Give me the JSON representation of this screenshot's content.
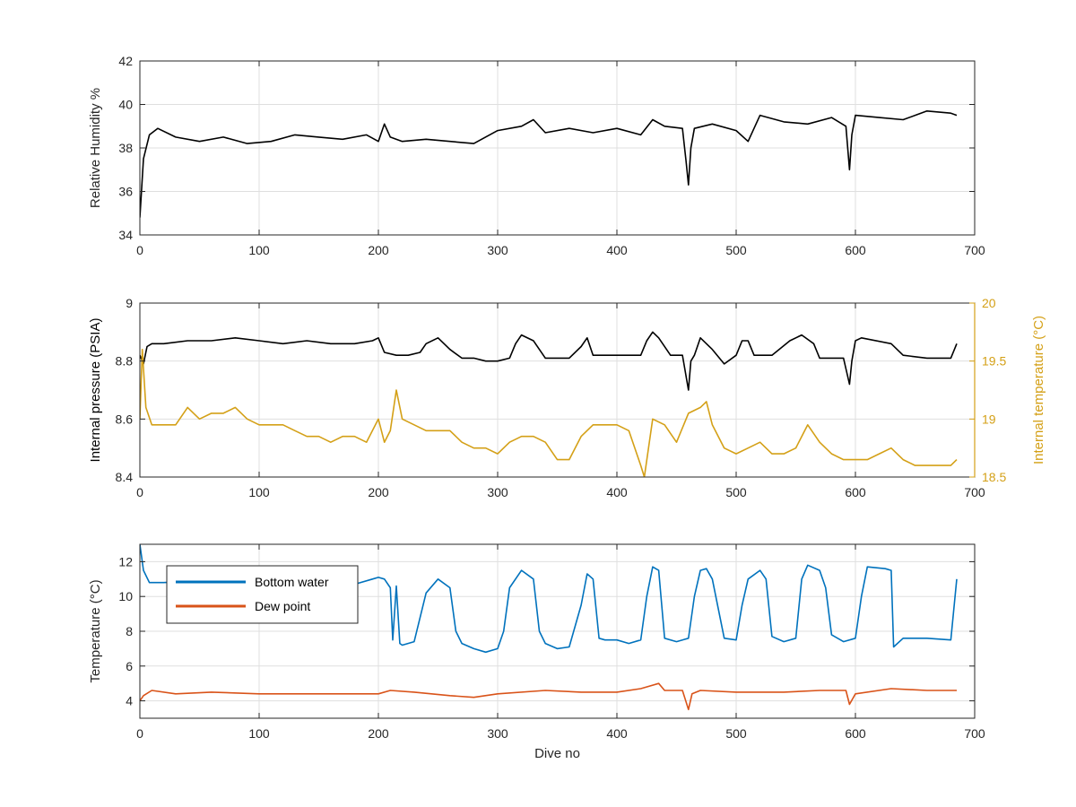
{
  "figure": {
    "background": "#ffffff"
  },
  "chart_data": [
    {
      "id": "humidity",
      "type": "line",
      "xlabel": "",
      "ylabel": "Relative Humidity %",
      "xlim": [
        0,
        700
      ],
      "ylim": [
        34,
        42
      ],
      "xticks": [
        0,
        100,
        200,
        300,
        400,
        500,
        600,
        700
      ],
      "yticks": [
        34,
        36,
        38,
        40,
        42
      ],
      "grid": true,
      "series": [
        {
          "color": "#000000",
          "x": [
            0,
            3,
            8,
            15,
            30,
            50,
            70,
            90,
            110,
            130,
            150,
            170,
            190,
            200,
            205,
            210,
            220,
            240,
            260,
            280,
            300,
            320,
            330,
            340,
            360,
            380,
            400,
            420,
            430,
            440,
            455,
            458,
            460,
            462,
            465,
            480,
            500,
            510,
            520,
            540,
            560,
            580,
            592,
            595,
            597,
            600,
            620,
            640,
            660,
            680,
            685
          ],
          "y": [
            34.8,
            37.5,
            38.6,
            38.9,
            38.5,
            38.3,
            38.5,
            38.2,
            38.3,
            38.6,
            38.5,
            38.4,
            38.6,
            38.3,
            39.1,
            38.5,
            38.3,
            38.4,
            38.3,
            38.2,
            38.8,
            39.0,
            39.3,
            38.7,
            38.9,
            38.7,
            38.9,
            38.6,
            39.3,
            39.0,
            38.9,
            37.4,
            36.3,
            38.0,
            38.9,
            39.1,
            38.8,
            38.3,
            39.5,
            39.2,
            39.1,
            39.4,
            39.0,
            37.0,
            38.6,
            39.5,
            39.4,
            39.3,
            39.7,
            39.6,
            39.5
          ]
        }
      ]
    },
    {
      "id": "pressure-temperature",
      "type": "line",
      "xlabel": "",
      "ylabel": "Internal pressure (PSIA)",
      "ylabel_right": "Internal temperature (°C)",
      "xlim": [
        0,
        700
      ],
      "ylim": [
        8.4,
        9
      ],
      "ylim_right": [
        18.5,
        20
      ],
      "xticks": [
        0,
        100,
        200,
        300,
        400,
        500,
        600,
        700
      ],
      "yticks": [
        8.4,
        8.6,
        8.8,
        9
      ],
      "yticks_right": [
        18.5,
        19,
        19.5,
        20
      ],
      "grid": true,
      "series": [
        {
          "axis": "left",
          "color": "#000000",
          "x": [
            0,
            3,
            6,
            10,
            20,
            40,
            60,
            80,
            100,
            120,
            140,
            160,
            180,
            195,
            200,
            205,
            215,
            225,
            235,
            240,
            250,
            260,
            270,
            280,
            290,
            300,
            310,
            315,
            320,
            330,
            340,
            360,
            370,
            375,
            380,
            390,
            400,
            420,
            425,
            430,
            435,
            445,
            455,
            460,
            462,
            465,
            470,
            480,
            490,
            500,
            505,
            510,
            515,
            520,
            530,
            545,
            555,
            565,
            570,
            580,
            590,
            595,
            597,
            600,
            605,
            630,
            640,
            660,
            680,
            685
          ],
          "y": [
            8.82,
            8.79,
            8.85,
            8.86,
            8.86,
            8.87,
            8.87,
            8.88,
            8.87,
            8.86,
            8.87,
            8.86,
            8.86,
            8.87,
            8.88,
            8.83,
            8.82,
            8.82,
            8.83,
            8.86,
            8.88,
            8.84,
            8.81,
            8.81,
            8.8,
            8.8,
            8.81,
            8.86,
            8.89,
            8.87,
            8.81,
            8.81,
            8.85,
            8.88,
            8.82,
            8.82,
            8.82,
            8.82,
            8.87,
            8.9,
            8.88,
            8.82,
            8.82,
            8.7,
            8.8,
            8.82,
            8.88,
            8.84,
            8.79,
            8.82,
            8.87,
            8.87,
            8.82,
            8.82,
            8.82,
            8.87,
            8.89,
            8.86,
            8.81,
            8.81,
            8.81,
            8.72,
            8.8,
            8.87,
            8.88,
            8.86,
            8.82,
            8.81,
            8.81,
            8.86
          ]
        },
        {
          "axis": "right",
          "color": "#D4A017",
          "x": [
            0,
            2,
            5,
            10,
            20,
            30,
            40,
            50,
            60,
            70,
            80,
            90,
            100,
            110,
            120,
            130,
            140,
            150,
            160,
            170,
            180,
            190,
            200,
            205,
            210,
            215,
            220,
            230,
            240,
            250,
            260,
            270,
            280,
            290,
            300,
            310,
            320,
            330,
            340,
            350,
            360,
            370,
            380,
            390,
            400,
            410,
            420,
            423,
            430,
            440,
            450,
            460,
            470,
            475,
            480,
            490,
            500,
            510,
            520,
            530,
            540,
            550,
            560,
            570,
            580,
            590,
            600,
            610,
            620,
            630,
            640,
            650,
            660,
            670,
            680,
            685
          ],
          "y": [
            19.0,
            19.6,
            19.1,
            18.95,
            18.95,
            18.95,
            19.1,
            19.0,
            19.05,
            19.05,
            19.1,
            19.0,
            18.95,
            18.95,
            18.95,
            18.9,
            18.85,
            18.85,
            18.8,
            18.85,
            18.85,
            18.8,
            19.0,
            18.8,
            18.9,
            19.25,
            19.0,
            18.95,
            18.9,
            18.9,
            18.9,
            18.8,
            18.75,
            18.75,
            18.7,
            18.8,
            18.85,
            18.85,
            18.8,
            18.65,
            18.65,
            18.85,
            18.95,
            18.95,
            18.95,
            18.9,
            18.6,
            18.5,
            19.0,
            18.95,
            18.8,
            19.05,
            19.1,
            19.15,
            18.95,
            18.75,
            18.7,
            18.75,
            18.8,
            18.7,
            18.7,
            18.75,
            18.95,
            18.8,
            18.7,
            18.65,
            18.65,
            18.65,
            18.7,
            18.75,
            18.65,
            18.6,
            18.6,
            18.6,
            18.6,
            18.65
          ]
        }
      ]
    },
    {
      "id": "temperature",
      "type": "line",
      "xlabel": "Dive no",
      "ylabel": "Temperature (°C)",
      "xlim": [
        0,
        700
      ],
      "ylim": [
        3,
        13
      ],
      "xticks": [
        0,
        100,
        200,
        300,
        400,
        500,
        600,
        700
      ],
      "yticks": [
        4,
        6,
        8,
        10,
        12
      ],
      "grid": true,
      "legend": "top-left",
      "series": [
        {
          "name": "Bottom water",
          "color": "#0072BD",
          "x": [
            0,
            3,
            8,
            20,
            50,
            100,
            150,
            180,
            195,
            200,
            205,
            210,
            212,
            215,
            218,
            220,
            230,
            240,
            250,
            260,
            265,
            270,
            280,
            290,
            300,
            305,
            310,
            320,
            330,
            335,
            340,
            350,
            360,
            370,
            375,
            380,
            385,
            390,
            400,
            410,
            420,
            425,
            430,
            435,
            440,
            450,
            460,
            465,
            470,
            475,
            480,
            490,
            500,
            505,
            510,
            520,
            525,
            530,
            540,
            550,
            555,
            560,
            570,
            575,
            580,
            590,
            600,
            605,
            610,
            625,
            630,
            632,
            640,
            660,
            680,
            685
          ],
          "y": [
            13,
            11.5,
            10.8,
            10.8,
            10.9,
            10.7,
            10.8,
            10.7,
            11.0,
            11.1,
            11.0,
            10.5,
            7.5,
            10.6,
            7.3,
            7.2,
            7.4,
            10.2,
            11.0,
            10.5,
            8.0,
            7.3,
            7.0,
            6.8,
            7.0,
            8.0,
            10.5,
            11.5,
            11.0,
            8.0,
            7.3,
            7.0,
            7.1,
            9.5,
            11.3,
            11.0,
            7.6,
            7.5,
            7.5,
            7.3,
            7.5,
            10.0,
            11.7,
            11.5,
            7.6,
            7.4,
            7.6,
            10.0,
            11.5,
            11.6,
            11.0,
            7.6,
            7.5,
            9.5,
            11.0,
            11.5,
            11.0,
            7.7,
            7.4,
            7.6,
            11.0,
            11.8,
            11.5,
            10.5,
            7.8,
            7.4,
            7.6,
            10.0,
            11.7,
            11.6,
            11.5,
            7.1,
            7.6,
            7.6,
            7.5,
            11.0
          ]
        },
        {
          "name": "Dew point",
          "color": "#D95319",
          "x": [
            0,
            3,
            10,
            30,
            60,
            100,
            150,
            200,
            210,
            230,
            260,
            280,
            300,
            340,
            370,
            400,
            420,
            435,
            440,
            455,
            460,
            463,
            470,
            500,
            540,
            570,
            592,
            595,
            600,
            630,
            660,
            685
          ],
          "y": [
            4.0,
            4.3,
            4.6,
            4.4,
            4.5,
            4.4,
            4.4,
            4.4,
            4.6,
            4.5,
            4.3,
            4.2,
            4.4,
            4.6,
            4.5,
            4.5,
            4.7,
            5.0,
            4.6,
            4.6,
            3.5,
            4.4,
            4.6,
            4.5,
            4.5,
            4.6,
            4.6,
            3.8,
            4.4,
            4.7,
            4.6,
            4.6
          ]
        }
      ]
    }
  ]
}
